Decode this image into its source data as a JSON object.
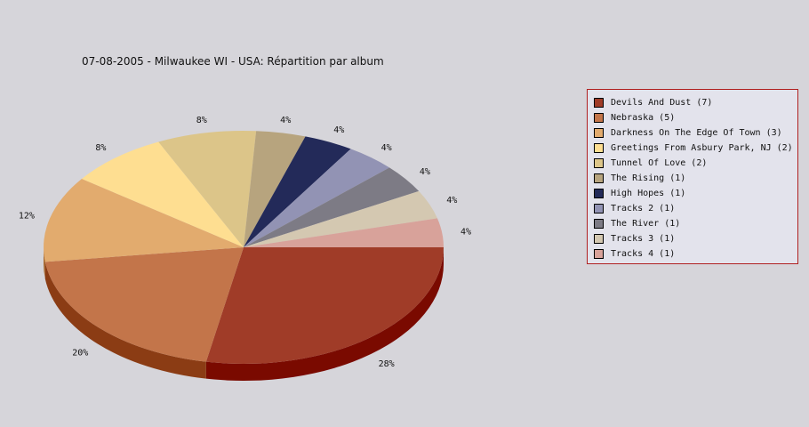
{
  "chart_data": {
    "type": "pie",
    "title": "07-08-2005 - Milwaukee WI - USA:  Répartition par album",
    "legend_position": "right",
    "slices": [
      {
        "label": "Devils And Dust (7)",
        "value": 7,
        "percent_label": "28%",
        "color": "#a03c28",
        "side_color": "#7a0a00"
      },
      {
        "label": "Nebraska (5)",
        "value": 5,
        "percent_label": "20%",
        "color": "#c3754a",
        "side_color": "#8b3c14"
      },
      {
        "label": "Darkness On The Edge Of Town (3)",
        "value": 3,
        "percent_label": "12%",
        "color": "#e2ab6e",
        "side_color": "#a5652a"
      },
      {
        "label": "Greetings From Asbury Park, NJ (2)",
        "value": 2,
        "percent_label": "8%",
        "color": "#fede91",
        "side_color": "#b09a55"
      },
      {
        "label": "Tunnel Of Love (2)",
        "value": 2,
        "percent_label": "8%",
        "color": "#dcc589",
        "side_color": "#9c8850"
      },
      {
        "label": "The Rising (1)",
        "value": 1,
        "percent_label": "4%",
        "color": "#b7a47e",
        "side_color": "#7e6e50"
      },
      {
        "label": "High Hopes (1)",
        "value": 1,
        "percent_label": "4%",
        "color": "#232a59",
        "side_color": "#10143a"
      },
      {
        "label": "Tracks 2 (1)",
        "value": 1,
        "percent_label": "4%",
        "color": "#9293b4",
        "side_color": "#5e5f80"
      },
      {
        "label": "The River (1)",
        "value": 1,
        "percent_label": "4%",
        "color": "#7d7b85",
        "side_color": "#4e4c55"
      },
      {
        "label": "Tracks 3 (1)",
        "value": 1,
        "percent_label": "4%",
        "color": "#d4c8b1",
        "side_color": "#9a8e78"
      },
      {
        "label": "Tracks 4 (1)",
        "value": 1,
        "percent_label": "4%",
        "color": "#d8a29a",
        "side_color": "#a06a62"
      }
    ]
  }
}
